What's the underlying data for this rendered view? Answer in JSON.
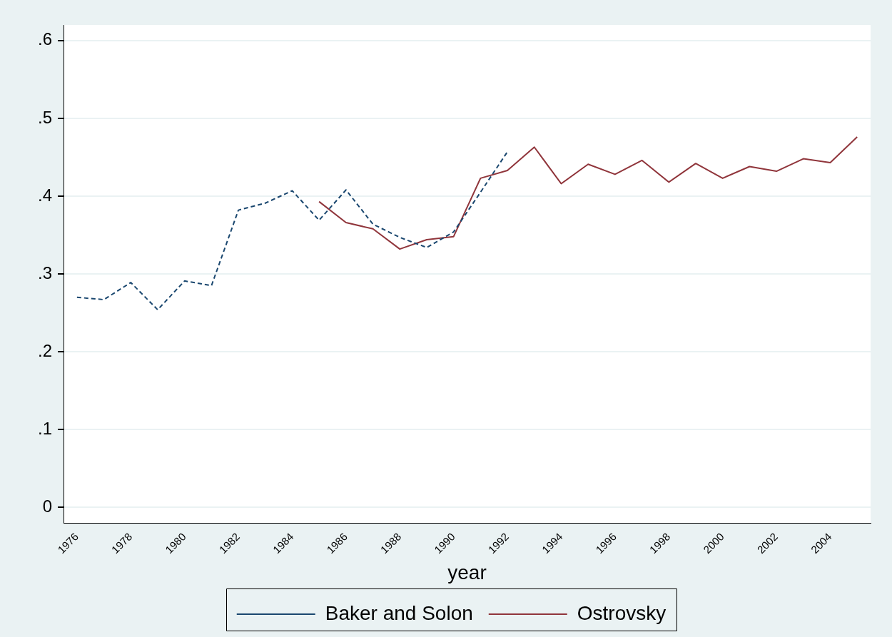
{
  "chart_data": {
    "type": "line",
    "xlabel": "year",
    "xlim": [
      1975.5,
      2005.5
    ],
    "xticks": [
      1976,
      1978,
      1980,
      1982,
      1984,
      1986,
      1988,
      1990,
      1992,
      1994,
      1996,
      1998,
      2000,
      2002,
      2004
    ],
    "ylim": [
      -0.02,
      0.62
    ],
    "yticks": [
      0,
      {
        "value": 0.1,
        "label": ".1"
      },
      {
        "value": 0.2,
        "label": ".2"
      },
      {
        "value": 0.3,
        "label": ".3"
      },
      {
        "value": 0.4,
        "label": ".4"
      },
      {
        "value": 0.5,
        "label": ".5"
      },
      {
        "value": 0.6,
        "label": ".6"
      }
    ],
    "grid": "y",
    "legend": "bottom",
    "marker": "none",
    "series": [
      {
        "name": "Baker and Solon",
        "color": "#1a476f",
        "line_style": "dashed",
        "x": [
          1976,
          1977,
          1978,
          1979,
          1980,
          1981,
          1982,
          1983,
          1984,
          1985,
          1986,
          1987,
          1988,
          1989,
          1990,
          1991,
          1992
        ],
        "values": [
          0.27,
          0.267,
          0.289,
          0.254,
          0.291,
          0.285,
          0.382,
          0.391,
          0.407,
          0.369,
          0.408,
          0.364,
          0.347,
          0.334,
          0.354,
          0.405,
          0.457
        ]
      },
      {
        "name": "Ostrovsky",
        "color": "#90353b",
        "line_style": "solid",
        "x": [
          1985,
          1986,
          1987,
          1988,
          1989,
          1990,
          1991,
          1992,
          1993,
          1994,
          1995,
          1996,
          1997,
          1998,
          1999,
          2000,
          2001,
          2002,
          2003,
          2004,
          2005
        ],
        "values": [
          0.393,
          0.366,
          0.358,
          0.332,
          0.344,
          0.348,
          0.423,
          0.433,
          0.463,
          0.416,
          0.441,
          0.428,
          0.446,
          0.418,
          0.442,
          0.423,
          0.438,
          0.432,
          0.448,
          0.443,
          0.476
        ]
      }
    ]
  }
}
